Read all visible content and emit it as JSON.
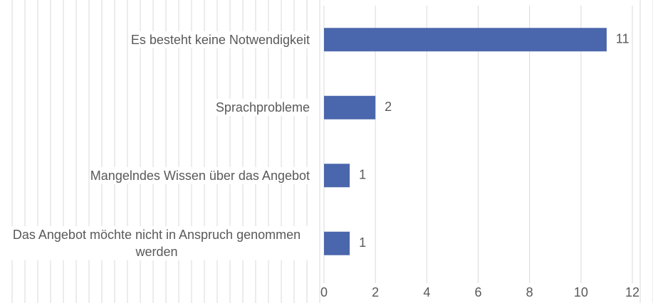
{
  "chart_data": {
    "type": "barh",
    "categories": [
      "Es besteht keine Notwendigkeit",
      "Sprachprobleme",
      "Mangelndes Wissen über das Angebot",
      "Das Angebot möchte nicht in Anspruch genommen werden"
    ],
    "values": [
      11,
      2,
      1,
      1
    ],
    "color": "#4a66ac",
    "xlim": [
      0,
      12
    ],
    "xticks": [
      0,
      2,
      4,
      6,
      8,
      10,
      12
    ],
    "grid": true
  }
}
